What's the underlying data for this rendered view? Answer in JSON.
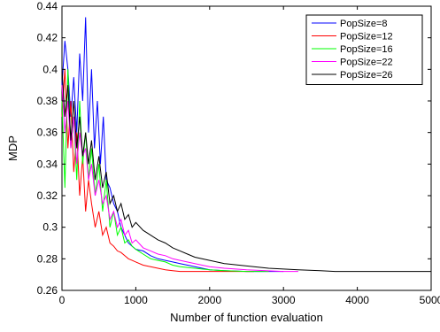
{
  "chart_data": {
    "type": "line",
    "title": "",
    "xlabel": "Number of function evaluation",
    "ylabel": "MDP",
    "xlim": [
      0,
      5000
    ],
    "ylim": [
      0.26,
      0.44
    ],
    "xticks": [
      0,
      1000,
      2000,
      3000,
      4000,
      5000
    ],
    "yticks": [
      0.26,
      0.28,
      0.3,
      0.32,
      0.34,
      0.36,
      0.38,
      0.4,
      0.42,
      0.44
    ],
    "xtick_labels": [
      "0",
      "1000",
      "2000",
      "3000",
      "4000",
      "5000"
    ],
    "ytick_labels": [
      "0.26",
      "0.28",
      "0.3",
      "0.32",
      "0.34",
      "0.36",
      "0.38",
      "0.4",
      "0.42",
      "0.44"
    ],
    "grid": false,
    "legend_position": "top-right",
    "series": [
      {
        "name": "PopSize=8",
        "color": "#0000ff",
        "x": [
          0,
          40,
          80,
          120,
          160,
          200,
          240,
          280,
          320,
          360,
          400,
          440,
          480,
          520,
          560,
          600,
          650,
          700,
          750,
          800,
          850,
          900,
          950,
          1000,
          1100,
          1200,
          1300,
          1400,
          1500,
          1600,
          1700,
          1800,
          1900,
          2000,
          2200,
          2500,
          3000
        ],
        "y": [
          0.39,
          0.418,
          0.4,
          0.37,
          0.395,
          0.36,
          0.41,
          0.38,
          0.433,
          0.36,
          0.4,
          0.35,
          0.38,
          0.34,
          0.37,
          0.33,
          0.325,
          0.315,
          0.31,
          0.3,
          0.295,
          0.29,
          0.288,
          0.286,
          0.285,
          0.282,
          0.28,
          0.279,
          0.278,
          0.277,
          0.276,
          0.275,
          0.274,
          0.273,
          0.2725,
          0.272,
          0.272
        ]
      },
      {
        "name": "PopSize=12",
        "color": "#ff0000",
        "x": [
          0,
          40,
          80,
          120,
          160,
          200,
          240,
          280,
          320,
          360,
          400,
          450,
          500,
          550,
          600,
          650,
          700,
          750,
          800,
          850,
          900,
          950,
          1000,
          1100,
          1200,
          1300,
          1400,
          1500,
          1600,
          1800,
          2000,
          2300,
          2600
        ],
        "y": [
          0.37,
          0.4,
          0.35,
          0.38,
          0.335,
          0.36,
          0.32,
          0.345,
          0.31,
          0.33,
          0.315,
          0.3,
          0.31,
          0.295,
          0.3,
          0.29,
          0.288,
          0.285,
          0.284,
          0.282,
          0.28,
          0.279,
          0.278,
          0.276,
          0.275,
          0.274,
          0.273,
          0.2725,
          0.272,
          0.272,
          0.272,
          0.272,
          0.272
        ]
      },
      {
        "name": "PopSize=16",
        "color": "#00ff00",
        "x": [
          0,
          40,
          80,
          120,
          160,
          200,
          240,
          280,
          320,
          360,
          400,
          450,
          500,
          550,
          600,
          650,
          700,
          750,
          800,
          850,
          900,
          950,
          1000,
          1100,
          1200,
          1300,
          1400,
          1500,
          1600,
          1800,
          2000,
          2200,
          2500,
          2800
        ],
        "y": [
          0.38,
          0.325,
          0.4,
          0.35,
          0.37,
          0.33,
          0.38,
          0.34,
          0.36,
          0.33,
          0.35,
          0.32,
          0.34,
          0.31,
          0.33,
          0.3,
          0.31,
          0.295,
          0.3,
          0.29,
          0.292,
          0.288,
          0.286,
          0.283,
          0.28,
          0.279,
          0.278,
          0.276,
          0.275,
          0.274,
          0.273,
          0.2725,
          0.272,
          0.272
        ]
      },
      {
        "name": "PopSize=22",
        "color": "#ff00ff",
        "x": [
          0,
          40,
          80,
          120,
          160,
          200,
          240,
          280,
          320,
          360,
          400,
          450,
          500,
          550,
          600,
          650,
          700,
          750,
          800,
          850,
          900,
          950,
          1000,
          1100,
          1200,
          1300,
          1400,
          1500,
          1600,
          1800,
          2000,
          2200,
          2500,
          3000,
          3200
        ],
        "y": [
          0.39,
          0.36,
          0.38,
          0.35,
          0.37,
          0.34,
          0.36,
          0.345,
          0.35,
          0.33,
          0.34,
          0.32,
          0.33,
          0.315,
          0.32,
          0.305,
          0.31,
          0.3,
          0.305,
          0.295,
          0.298,
          0.29,
          0.292,
          0.287,
          0.285,
          0.283,
          0.282,
          0.28,
          0.279,
          0.277,
          0.275,
          0.274,
          0.273,
          0.272,
          0.272
        ]
      },
      {
        "name": "PopSize=26",
        "color": "#000000",
        "x": [
          0,
          40,
          80,
          120,
          160,
          200,
          240,
          280,
          320,
          360,
          400,
          450,
          500,
          550,
          600,
          650,
          700,
          750,
          800,
          850,
          900,
          950,
          1000,
          1100,
          1200,
          1300,
          1400,
          1500,
          1600,
          1700,
          1800,
          2000,
          2200,
          2400,
          2600,
          2800,
          3000,
          3200,
          3500,
          3700,
          4000,
          4500,
          5000
        ],
        "y": [
          0.4,
          0.37,
          0.39,
          0.355,
          0.38,
          0.35,
          0.37,
          0.345,
          0.36,
          0.34,
          0.355,
          0.33,
          0.345,
          0.325,
          0.335,
          0.315,
          0.32,
          0.31,
          0.315,
          0.305,
          0.308,
          0.3,
          0.303,
          0.298,
          0.295,
          0.292,
          0.29,
          0.287,
          0.285,
          0.283,
          0.281,
          0.279,
          0.277,
          0.276,
          0.275,
          0.274,
          0.2735,
          0.273,
          0.2725,
          0.272,
          0.272,
          0.272,
          0.272
        ]
      }
    ]
  }
}
